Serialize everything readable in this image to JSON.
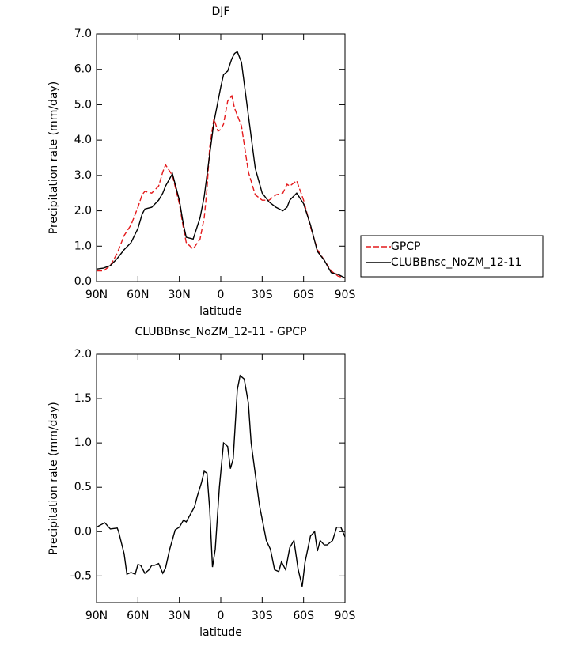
{
  "chart_data": [
    {
      "type": "line",
      "title": "DJF",
      "x_label": "latitude",
      "y_label": "Precipitation rate (mm/day)",
      "x": [
        90,
        85,
        80,
        75,
        70,
        65,
        60,
        57,
        55,
        50,
        45,
        42,
        40,
        35,
        30,
        27,
        25,
        20,
        15,
        12,
        10,
        8,
        5,
        2,
        0,
        -2,
        -5,
        -8,
        -10,
        -12,
        -15,
        -20,
        -25,
        -30,
        -35,
        -40,
        -45,
        -48,
        -50,
        -55,
        -60,
        -65,
        -70,
        -75,
        -80,
        -85,
        -90
      ],
      "series": [
        {
          "name": "GPCP",
          "color": "#e41a1c",
          "line_style": "dashed",
          "values": [
            0.3,
            0.3,
            0.45,
            0.8,
            1.3,
            1.6,
            2.1,
            2.45,
            2.55,
            2.5,
            2.7,
            3.1,
            3.3,
            3.0,
            2.2,
            1.5,
            1.1,
            0.92,
            1.2,
            1.8,
            2.6,
            3.8,
            4.6,
            4.25,
            4.3,
            4.45,
            5.1,
            5.25,
            4.9,
            4.7,
            4.4,
            3.1,
            2.45,
            2.3,
            2.3,
            2.45,
            2.5,
            2.75,
            2.7,
            2.85,
            2.3,
            1.55,
            0.9,
            0.6,
            0.3,
            0.15,
            0.1
          ]
        },
        {
          "name": "CLUBBnsc_NoZM_12-11",
          "color": "#000000",
          "line_style": "solid",
          "values": [
            0.35,
            0.38,
            0.45,
            0.65,
            0.9,
            1.1,
            1.5,
            1.9,
            2.05,
            2.1,
            2.3,
            2.5,
            2.7,
            3.05,
            2.3,
            1.6,
            1.25,
            1.2,
            1.8,
            2.4,
            3.0,
            3.6,
            4.5,
            5.1,
            5.5,
            5.85,
            5.95,
            6.3,
            6.45,
            6.5,
            6.2,
            4.7,
            3.2,
            2.5,
            2.25,
            2.1,
            2.0,
            2.1,
            2.3,
            2.5,
            2.2,
            1.6,
            0.85,
            0.6,
            0.25,
            0.2,
            0.1
          ]
        }
      ],
      "xlim": [
        90,
        -90
      ],
      "xticks": [
        {
          "value": 90,
          "label": "90N"
        },
        {
          "value": 60,
          "label": "60N"
        },
        {
          "value": 30,
          "label": "30N"
        },
        0,
        {
          "value": -30,
          "label": "30S"
        },
        {
          "value": -60,
          "label": "60S"
        },
        {
          "value": -90,
          "label": "90S"
        }
      ],
      "ylim": [
        0,
        7
      ],
      "yticks": [
        {
          "value": 0,
          "label": "0.0"
        },
        {
          "value": 1,
          "label": "1.0"
        },
        {
          "value": 2,
          "label": "2.0"
        },
        {
          "value": 3,
          "label": "3.0"
        },
        {
          "value": 4,
          "label": "4.0"
        },
        {
          "value": 5,
          "label": "5.0"
        },
        {
          "value": 6,
          "label": "6.0"
        },
        {
          "value": 7,
          "label": "7.0"
        }
      ],
      "legend": "right"
    },
    {
      "type": "line",
      "title": "CLUBBnsc_NoZM_12-11 - GPCP",
      "x_label": "latitude",
      "y_label": "Precipitation rate (mm/day)",
      "x": [
        90,
        84,
        80,
        75,
        74,
        70,
        68,
        65,
        62,
        60,
        58,
        55,
        52,
        50,
        48,
        45,
        42,
        40,
        37,
        33,
        30,
        27,
        25,
        19,
        17,
        14,
        12,
        10,
        8,
        6,
        4,
        1,
        -2,
        -5,
        -7,
        -9,
        -12,
        -14,
        -17,
        -20,
        -22,
        -28,
        -33,
        -36,
        -39,
        -42,
        -44,
        -47,
        -50,
        -53,
        -56,
        -59,
        -61,
        -65,
        -68,
        -70,
        -72,
        -75,
        -77,
        -81,
        -84,
        -87,
        -90
      ],
      "values": [
        0.05,
        0.1,
        0.03,
        0.04,
        0.0,
        -0.25,
        -0.48,
        -0.46,
        -0.48,
        -0.37,
        -0.38,
        -0.47,
        -0.43,
        -0.38,
        -0.38,
        -0.36,
        -0.47,
        -0.41,
        -0.2,
        0.02,
        0.05,
        0.13,
        0.11,
        0.28,
        0.4,
        0.55,
        0.68,
        0.66,
        0.25,
        -0.4,
        -0.2,
        0.5,
        1.0,
        0.96,
        0.71,
        0.82,
        1.6,
        1.76,
        1.72,
        1.45,
        1.0,
        0.3,
        -0.1,
        -0.2,
        -0.43,
        -0.45,
        -0.34,
        -0.43,
        -0.18,
        -0.1,
        -0.42,
        -0.62,
        -0.35,
        -0.05,
        0.0,
        -0.22,
        -0.1,
        -0.15,
        -0.15,
        -0.1,
        0.05,
        0.05,
        -0.06
      ],
      "color": "#000000",
      "xlim": [
        90,
        -90
      ],
      "xticks": [
        {
          "value": 90,
          "label": "90N"
        },
        {
          "value": 60,
          "label": "60N"
        },
        {
          "value": 30,
          "label": "30N"
        },
        0,
        {
          "value": -30,
          "label": "30S"
        },
        {
          "value": -60,
          "label": "60S"
        },
        {
          "value": -90,
          "label": "90S"
        }
      ],
      "ylim": [
        -0.8,
        2
      ],
      "yticks": [
        {
          "value": -0.5,
          "label": "-0.5"
        },
        {
          "value": 0,
          "label": "0.0"
        },
        {
          "value": 0.5,
          "label": "0.5"
        },
        {
          "value": 1,
          "label": "1.0"
        },
        {
          "value": 1.5,
          "label": "1.5"
        },
        {
          "value": 2,
          "label": "2.0"
        }
      ]
    }
  ]
}
